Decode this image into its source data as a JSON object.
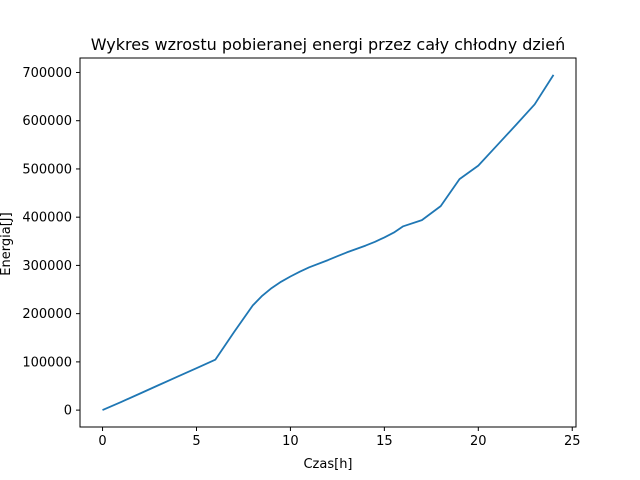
{
  "chart_data": {
    "type": "line",
    "title": "Wykres wzrostu pobieranej energi przez cały chłodny dzień",
    "xlabel": "Czas[h]",
    "ylabel": "Energia[J]",
    "xlim": [
      -1.2,
      25.2
    ],
    "ylim": [
      -35000,
      730000
    ],
    "x_ticks": [
      0,
      5,
      10,
      15,
      20,
      25
    ],
    "x_tick_labels": [
      "0",
      "5",
      "10",
      "15",
      "20",
      "25"
    ],
    "y_ticks": [
      0,
      100000,
      200000,
      300000,
      400000,
      500000,
      600000,
      700000
    ],
    "y_tick_labels": [
      "0",
      "100000",
      "200000",
      "300000",
      "400000",
      "500000",
      "600000",
      "700000"
    ],
    "grid": false,
    "line_color": "#1f77b4",
    "series": [
      {
        "x": [
          0,
          1,
          2,
          3,
          4,
          5,
          6,
          7,
          8,
          8.5,
          9,
          9.5,
          10,
          10.5,
          11,
          12,
          12.5,
          13,
          13.5,
          14,
          14.5,
          15,
          15.5,
          16,
          17,
          18,
          19,
          20,
          21,
          22,
          23,
          24
        ],
        "y": [
          0,
          17000,
          34500,
          52000,
          69500,
          87000,
          104500,
          162000,
          217000,
          237000,
          253000,
          266000,
          277000,
          287000,
          296000,
          311000,
          319000,
          327000,
          334000,
          341000,
          349000,
          358000,
          368000,
          381000,
          394000,
          423000,
          479000,
          507000,
          549000,
          591000,
          634000,
          695000
        ]
      }
    ]
  }
}
